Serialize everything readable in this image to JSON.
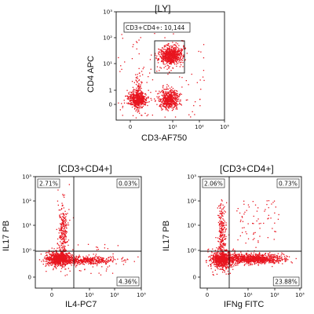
{
  "colors": {
    "dots": "#e8141e",
    "axis": "#111111",
    "gate": "#111111"
  },
  "chart_data": [
    {
      "type": "scatter",
      "title": "[LY]",
      "xlabel": "CD3-AF750",
      "ylabel": "CD4 APC",
      "x_scale": "biexponential",
      "y_scale": "biexponential",
      "x_ticks": [
        "0",
        "10¹",
        "10²",
        "10³"
      ],
      "y_ticks": [
        "0",
        "1",
        "10¹",
        "10²",
        "10³"
      ],
      "gate": {
        "label": "CD3+CD4+: 10,144"
      },
      "populations": [
        {
          "x": 0.1,
          "y": 0.4
        },
        {
          "x": 10,
          "y": 0.6
        },
        {
          "x": 10,
          "y": 18
        }
      ]
    },
    {
      "type": "scatter",
      "title": "[CD3+CD4+]",
      "xlabel": "IL4-PC7",
      "ylabel": "IL17 PB",
      "x_scale": "biexponential",
      "y_scale": "biexponential",
      "x_ticks": [
        "0",
        "10¹",
        "10²",
        "10³"
      ],
      "y_ticks": [
        "0",
        "10⁰",
        "10¹",
        "10²",
        "10³"
      ],
      "quadrants": {
        "top_left": "2.71%",
        "top_right": "0.03%",
        "bottom_left": "",
        "bottom_right": "4.36%"
      }
    },
    {
      "type": "scatter",
      "title": "[CD3+CD4+]",
      "xlabel": "IFNg FITC",
      "ylabel": "IL17 PB",
      "x_scale": "biexponential",
      "y_scale": "biexponential",
      "x_ticks": [
        "0",
        "10¹",
        "10²",
        "10³"
      ],
      "y_ticks": [
        "0",
        "10⁰",
        "10¹",
        "10²",
        "10³"
      ],
      "quadrants": {
        "top_left": "2.06%",
        "top_right": "0.73%",
        "bottom_left": "",
        "bottom_right": "23.88%"
      }
    }
  ]
}
